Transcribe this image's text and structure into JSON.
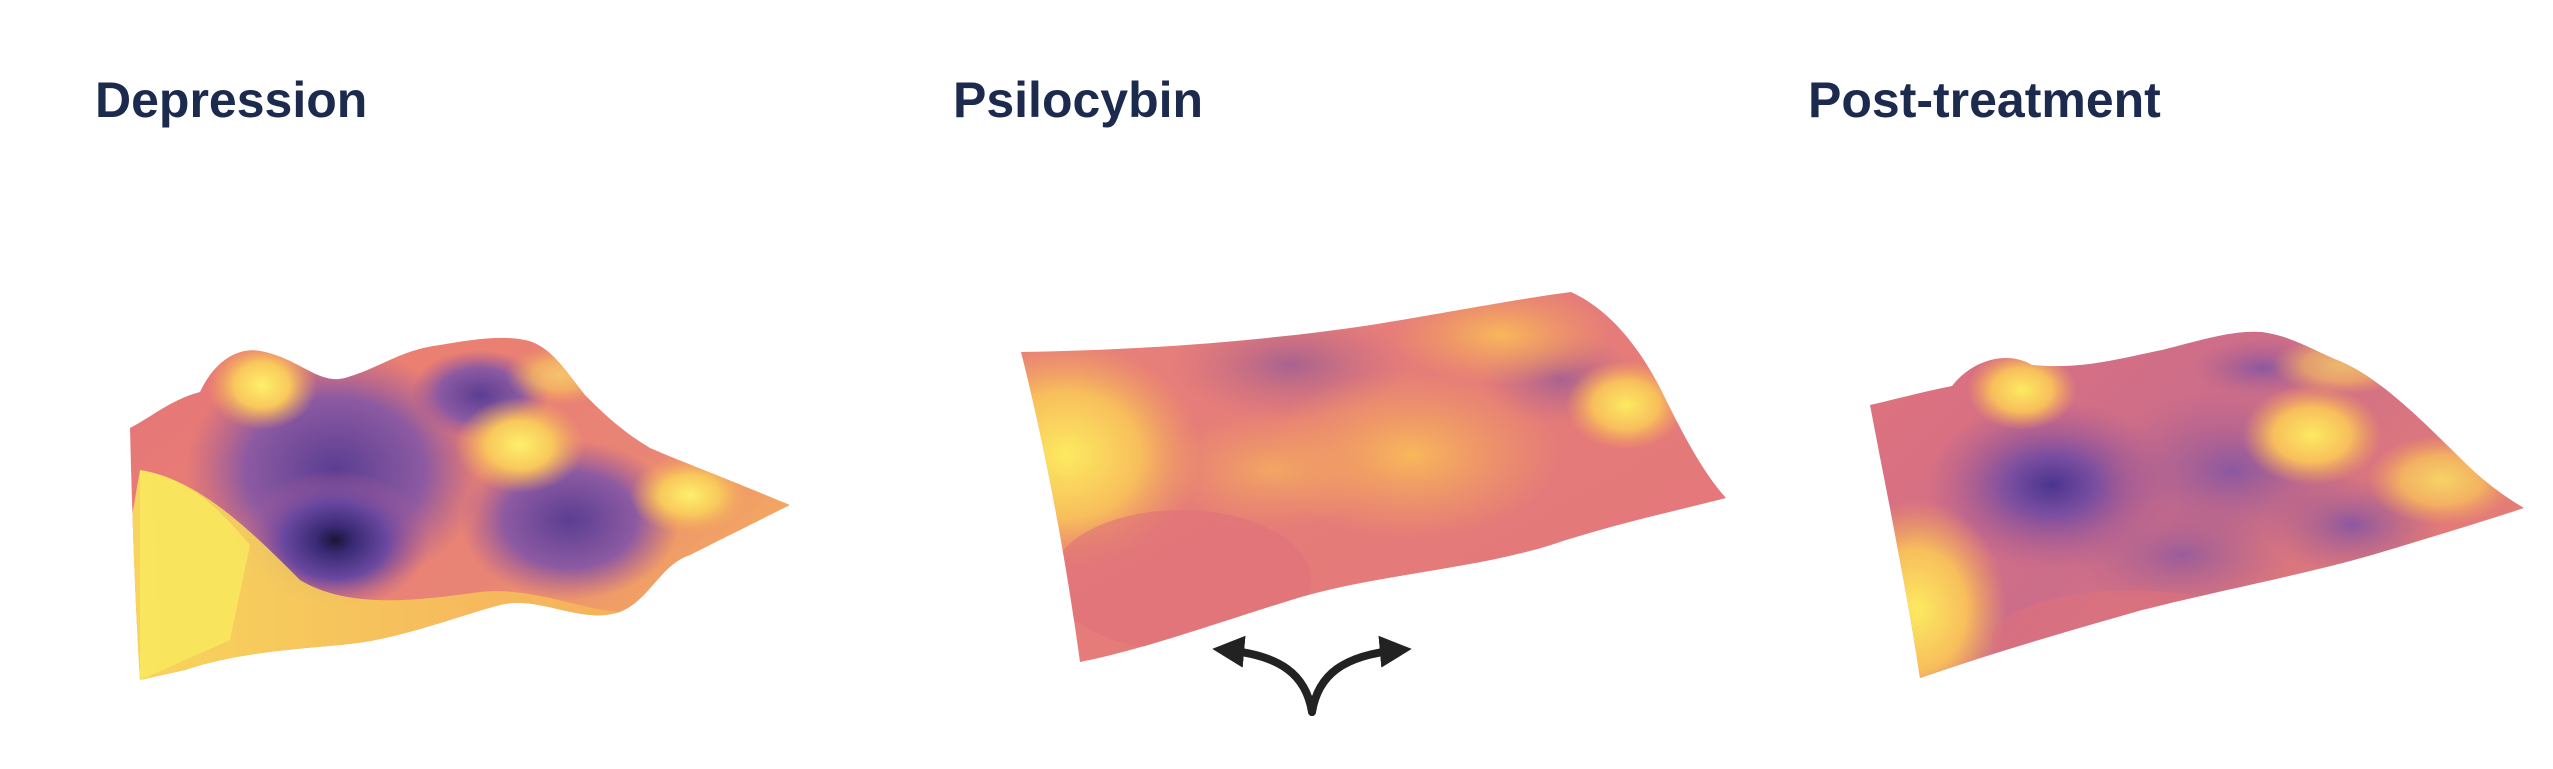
{
  "panels": [
    {
      "title": "Depression",
      "icon": "deep-valley-landscape"
    },
    {
      "title": "Psilocybin",
      "icon": "flattened-landscape",
      "indicator_icon": "branching-arrows-icon"
    },
    {
      "title": "Post-treatment",
      "icon": "reshaped-landscape"
    }
  ],
  "colors": {
    "title": "#1c2a4e",
    "surface_peak": "#fbe55a",
    "surface_mid": "#f3a35d",
    "surface_low": "#e0727a",
    "surface_valley": "#8d5aa2",
    "surface_deep": "#2b1e58",
    "arrows": "#222222"
  }
}
